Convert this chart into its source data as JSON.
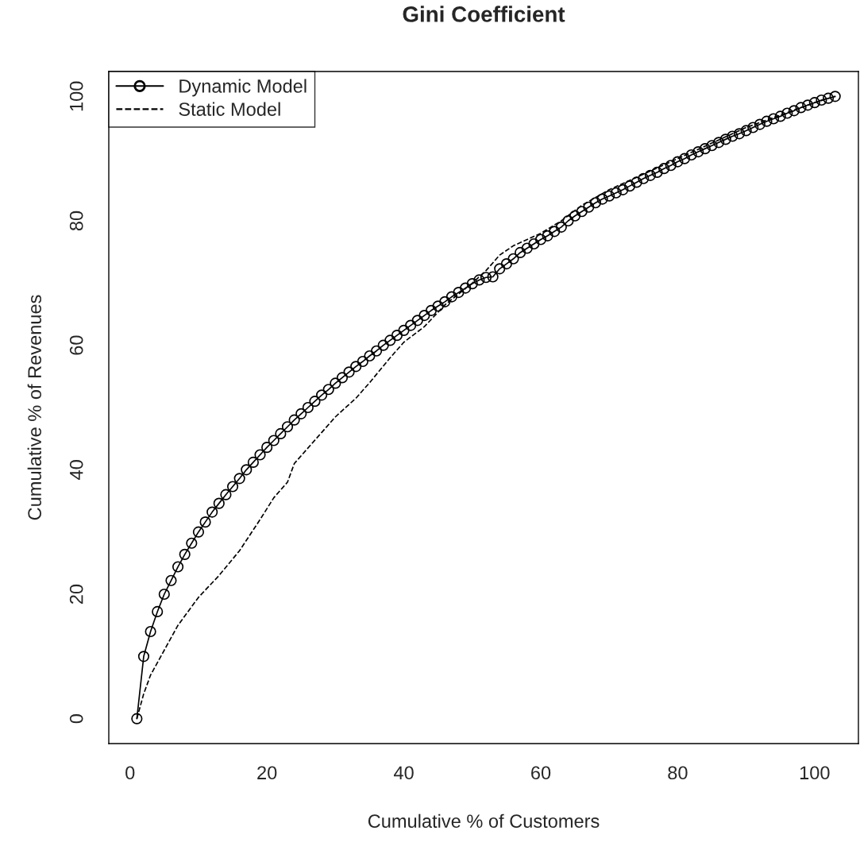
{
  "chart_data": {
    "type": "line",
    "title": "Gini Coefficient",
    "xlabel": "Cumulative % of Customers",
    "ylabel": "Cumulative % of Revenues",
    "xlim": [
      -3.1,
      106.4
    ],
    "ylim": [
      -4,
      104
    ],
    "xticks": [
      0,
      20,
      40,
      60,
      80,
      100
    ],
    "yticks": [
      0,
      20,
      40,
      60,
      80,
      100
    ],
    "grid": false,
    "legend": "top left",
    "series": [
      {
        "name": "Dynamic Model",
        "color": "#000000",
        "marker": "circle",
        "line_style": "solid",
        "x": [
          1,
          2,
          3,
          4,
          5,
          6,
          7,
          8,
          9,
          10,
          11,
          12,
          13,
          14,
          15,
          16,
          17,
          18,
          19,
          20,
          21,
          22,
          23,
          24,
          25,
          26,
          27,
          28,
          29,
          30,
          31,
          32,
          33,
          34,
          35,
          36,
          37,
          38,
          39,
          40,
          41,
          42,
          43,
          44,
          45,
          46,
          47,
          48,
          49,
          50,
          51,
          52,
          53,
          54,
          55,
          56,
          57,
          58,
          59,
          60,
          61,
          62,
          63,
          64,
          65,
          66,
          67,
          68,
          69,
          70,
          71,
          72,
          73,
          74,
          75,
          76,
          77,
          78,
          79,
          80,
          81,
          82,
          83,
          84,
          85,
          86,
          87,
          88,
          89,
          90,
          91,
          92,
          93,
          94,
          95,
          96,
          97,
          98,
          99,
          100,
          101,
          102,
          103
        ],
        "values": [
          0,
          10,
          14,
          17.2,
          20,
          22.2,
          24.4,
          26.4,
          28.2,
          30,
          31.6,
          33.2,
          34.6,
          36,
          37.3,
          38.6,
          40,
          41.2,
          42.4,
          43.6,
          44.7,
          45.8,
          46.9,
          48,
          49,
          50,
          51,
          52,
          52.9,
          53.9,
          54.8,
          55.7,
          56.6,
          57.4,
          58.3,
          59.1,
          60,
          60.8,
          61.6,
          62.4,
          63.2,
          64,
          64.8,
          65.6,
          66.3,
          67,
          67.8,
          68.5,
          69.2,
          69.9,
          70.5,
          70.9,
          71,
          72.3,
          73.1,
          73.9,
          74.9,
          75.6,
          76.3,
          77,
          77.6,
          78.3,
          79,
          80,
          80.8,
          81.5,
          82.2,
          82.9,
          83.5,
          84,
          84.5,
          85,
          85.6,
          86.2,
          86.8,
          87.3,
          87.8,
          88.4,
          88.9,
          89.5,
          90,
          90.6,
          91.1,
          91.6,
          92.1,
          92.6,
          93.1,
          93.6,
          94,
          94.5,
          95,
          95.5,
          96,
          96.4,
          96.8,
          97.3,
          97.7,
          98.2,
          98.6,
          99,
          99.4,
          99.7,
          100
        ]
      },
      {
        "name": "Static Model",
        "color": "#000000",
        "marker": "none",
        "line_style": "dashed",
        "x": [
          1,
          2,
          3,
          5,
          7,
          10,
          13,
          16,
          19,
          21,
          23,
          24,
          26,
          28,
          30,
          33,
          35,
          38,
          40,
          43,
          46,
          50,
          52,
          54,
          56,
          60,
          63,
          66,
          70,
          75,
          80,
          85,
          90,
          95,
          100,
          103
        ],
        "values": [
          0,
          4,
          7,
          11,
          15,
          19.5,
          23,
          27,
          32,
          35.5,
          38,
          41,
          43.5,
          46,
          48.5,
          51.5,
          54,
          58,
          60.5,
          63,
          66.5,
          70,
          72,
          74.5,
          76,
          78,
          80,
          82.5,
          85,
          87.5,
          90,
          92.5,
          95,
          97,
          99,
          100
        ]
      }
    ]
  }
}
